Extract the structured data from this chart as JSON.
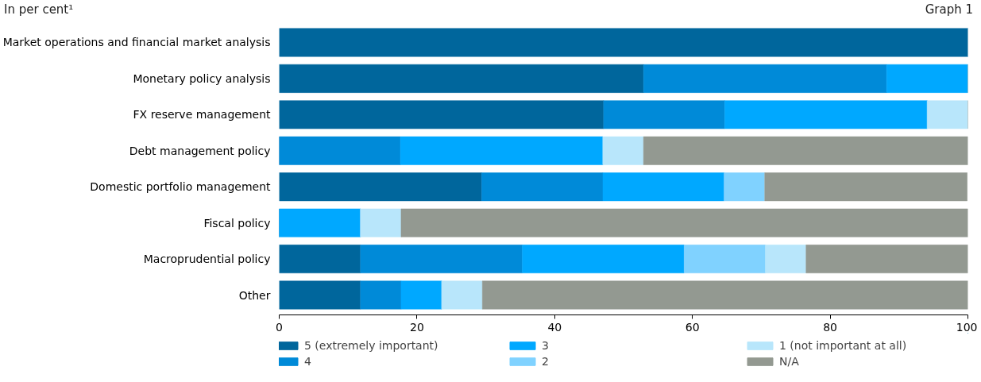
{
  "chart_data": {
    "type": "bar",
    "orientation": "horizontal",
    "stacked": true,
    "title": "In per cent¹",
    "annotations": [
      "Graph 1"
    ],
    "categories": [
      "Market operations and financial market analysis",
      "Monetary policy analysis",
      "FX reserve management",
      "Debt management policy",
      "Domestic portfolio management",
      "Fiscal policy",
      "Macroprudential policy",
      "Other"
    ],
    "series": [
      {
        "name": "5 (extremely important)",
        "color": "#00669c",
        "values": [
          100,
          52.9,
          47.1,
          0,
          29.4,
          0,
          11.8,
          11.8
        ]
      },
      {
        "name": "4",
        "color": "#008ad8",
        "values": [
          0,
          35.3,
          17.6,
          17.6,
          17.6,
          0,
          23.5,
          5.9
        ]
      },
      {
        "name": "3",
        "color": "#00a8ff",
        "values": [
          0,
          11.8,
          29.4,
          29.4,
          17.6,
          11.8,
          23.5,
          5.9
        ]
      },
      {
        "name": "2",
        "color": "#80d2ff",
        "values": [
          0,
          0,
          0,
          0,
          5.9,
          0,
          11.8,
          0
        ]
      },
      {
        "name": "1 (not important at all)",
        "color": "#b8e6fb",
        "values": [
          0,
          0,
          5.9,
          5.9,
          0,
          5.9,
          5.9,
          5.9
        ]
      },
      {
        "name": "N/A",
        "color": "#939991",
        "values": [
          0,
          0,
          0,
          47.1,
          29.4,
          82.4,
          23.5,
          70.6
        ]
      }
    ],
    "xlim": [
      0,
      100
    ],
    "xticks": [
      0,
      20,
      40,
      60,
      80,
      100
    ],
    "grid": false,
    "legend": "bottom"
  }
}
